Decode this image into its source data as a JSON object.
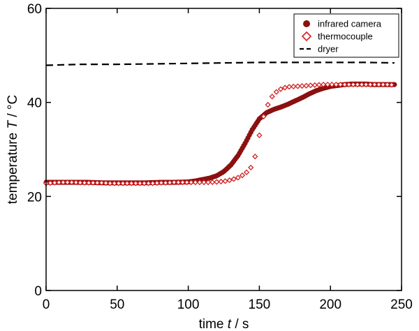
{
  "chart_data": {
    "type": "scatter",
    "xlabel_prefix": "time ",
    "xlabel_var": "t",
    "xlabel_suffix": " / s",
    "ylabel_prefix": "temperature ",
    "ylabel_var": "T",
    "ylabel_suffix": " / °C",
    "xlim": [
      0,
      250
    ],
    "ylim": [
      0,
      60
    ],
    "xticks": [
      0,
      50,
      100,
      150,
      200,
      250
    ],
    "yticks": [
      0,
      20,
      40,
      60
    ],
    "xtick_labels": [
      "0",
      "50",
      "100",
      "150",
      "200",
      "250"
    ],
    "ytick_labels": [
      "0",
      "20",
      "40",
      "60"
    ],
    "grid": false,
    "legend_position": "top-right",
    "colors": {
      "infrared": "#8b1010",
      "thermocouple": "#d42020",
      "dryer": "#000000"
    },
    "series": [
      {
        "name": "infrared camera",
        "style": "filled-circle",
        "x": [
          0,
          10,
          20,
          30,
          40,
          50,
          60,
          70,
          80,
          90,
          100,
          105,
          110,
          115,
          120,
          125,
          130,
          135,
          140,
          145,
          150,
          155,
          160,
          165,
          170,
          175,
          180,
          185,
          190,
          195,
          200,
          205,
          210,
          215,
          220,
          225,
          230,
          235,
          240,
          245
        ],
        "y": [
          23.0,
          23.0,
          23.0,
          23.0,
          22.9,
          22.9,
          22.9,
          22.9,
          23.0,
          23.0,
          23.1,
          23.3,
          23.6,
          23.9,
          24.4,
          25.3,
          26.7,
          28.7,
          31.3,
          34.2,
          36.5,
          37.8,
          38.5,
          39.0,
          39.6,
          40.3,
          41.0,
          41.8,
          42.5,
          43.0,
          43.4,
          43.6,
          43.8,
          43.9,
          43.9,
          43.9,
          43.8,
          43.8,
          43.8,
          43.8
        ]
      },
      {
        "name": "thermocouple",
        "style": "open-diamond",
        "x": [
          0,
          5,
          10,
          15,
          20,
          25,
          30,
          35,
          40,
          45,
          50,
          55,
          60,
          65,
          70,
          75,
          80,
          85,
          90,
          95,
          100,
          105,
          110,
          115,
          120,
          125,
          130,
          135,
          140,
          145,
          148,
          150,
          152,
          154,
          156,
          158,
          160,
          163,
          166,
          170,
          175,
          180,
          185,
          190,
          195,
          200,
          205,
          210,
          215,
          220,
          225,
          230,
          235,
          240,
          245
        ],
        "y": [
          22.8,
          22.9,
          23.0,
          23.0,
          23.0,
          22.9,
          22.9,
          22.9,
          22.9,
          22.8,
          22.8,
          22.8,
          22.8,
          22.8,
          22.8,
          22.8,
          22.9,
          22.9,
          23.0,
          23.0,
          23.0,
          23.0,
          23.0,
          23.0,
          23.1,
          23.2,
          23.5,
          24.0,
          24.8,
          26.5,
          29.5,
          33.0,
          36.0,
          38.0,
          39.5,
          40.8,
          41.7,
          42.5,
          43.0,
          43.3,
          43.4,
          43.5,
          43.6,
          43.7,
          43.8,
          43.8,
          43.8,
          43.8,
          43.8,
          43.8,
          43.8,
          43.8,
          43.8,
          43.8,
          43.7
        ]
      },
      {
        "name": "dryer",
        "style": "dashed-line",
        "x": [
          0,
          25,
          50,
          75,
          100,
          125,
          150,
          175,
          200,
          225,
          245
        ],
        "y": [
          47.9,
          48.1,
          48.1,
          48.2,
          48.3,
          48.4,
          48.5,
          48.5,
          48.5,
          48.5,
          48.4
        ]
      }
    ]
  }
}
